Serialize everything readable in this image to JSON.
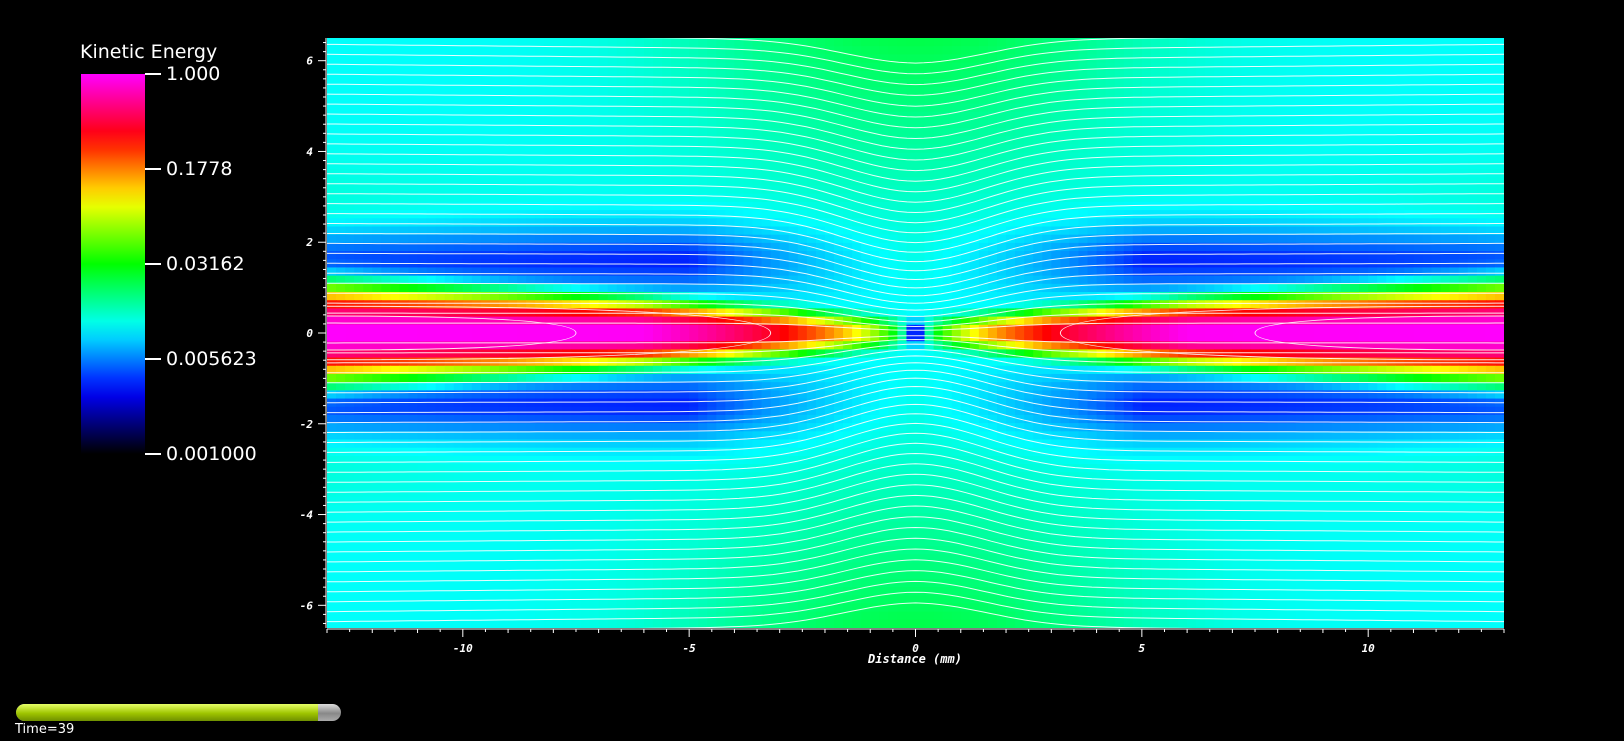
{
  "chart_data": {
    "type": "heatmap",
    "title": "",
    "xlabel": "Distance (mm)",
    "ylabel": "",
    "xlim": [
      -13,
      13
    ],
    "ylim": [
      -6.5,
      6.5
    ],
    "x_ticks": [
      -10,
      -5,
      0,
      5,
      10
    ],
    "y_ticks": [
      -6,
      -4,
      -2,
      0,
      2,
      4,
      6
    ],
    "colorbar": {
      "title": "Kinetic Energy",
      "scale": "log",
      "range": [
        0.001,
        1.0
      ],
      "labels": [
        "1.000",
        "0.1778",
        "0.03162",
        "0.005623",
        "0.001000"
      ],
      "values": [
        1.0,
        0.1778,
        0.03162,
        0.005623,
        0.001
      ],
      "colors": [
        "#000000",
        "#0000ff",
        "#00ffff",
        "#00ff00",
        "#ffff00",
        "#ff0000",
        "#ff00ff"
      ]
    },
    "streamlines": "white",
    "grid": false
  },
  "timeline": {
    "label": "Time=39",
    "progress": 0.93
  }
}
